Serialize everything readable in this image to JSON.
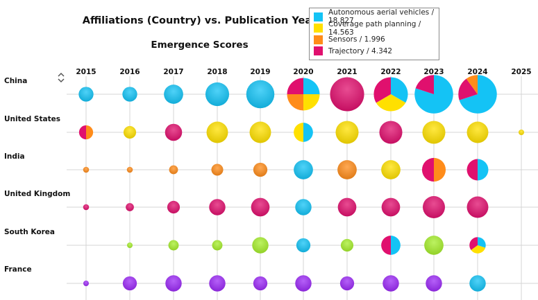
{
  "title": "Affiliations (Country) vs. Publication Year",
  "subtitle": "Emergence Scores",
  "icons": {
    "sort": "sort-toggle-icon"
  },
  "colors": {
    "Autonomous aerial vehicles": "#14C3F5",
    "Coverage path planning": "#FFE000",
    "Sensors": "#FF8C1A",
    "Trajectory": "#E0106E",
    "mixed": "#A6ED2C",
    "other": "#9C2BF5"
  },
  "legend": [
    {
      "label": "Autonomous aerial vehicles / 18.827",
      "series": "Autonomous aerial vehicles"
    },
    {
      "label": "Coverage path planning / 14.563",
      "series": "Coverage path planning"
    },
    {
      "label": "Sensors / 1.996",
      "series": "Sensors"
    },
    {
      "label": "Trajectory / 4.342",
      "series": "Trajectory"
    }
  ],
  "chart_data": {
    "type": "scatter",
    "subtype": "pie-bubble matrix",
    "title": "Affiliations (Country) vs. Publication Year",
    "subtitle": "Emergence Scores",
    "x_categories": [
      "2015",
      "2016",
      "2017",
      "2018",
      "2019",
      "2020",
      "2021",
      "2022",
      "2023",
      "2024",
      "2025"
    ],
    "y_categories": [
      "China",
      "United States",
      "India",
      "United Kingdom",
      "South Korea",
      "France"
    ],
    "grid": true,
    "legend_position": "top-right",
    "size_scale": [
      0,
      6
    ],
    "cells": [
      {
        "row": "China",
        "year": "2015",
        "size": 2.0,
        "slices": [
          {
            "s": "Autonomous aerial vehicles",
            "v": 1
          }
        ]
      },
      {
        "row": "China",
        "year": "2016",
        "size": 2.0,
        "slices": [
          {
            "s": "Autonomous aerial vehicles",
            "v": 1
          }
        ]
      },
      {
        "row": "China",
        "year": "2017",
        "size": 2.6,
        "slices": [
          {
            "s": "Autonomous aerial vehicles",
            "v": 1
          }
        ]
      },
      {
        "row": "China",
        "year": "2018",
        "size": 3.2,
        "slices": [
          {
            "s": "Autonomous aerial vehicles",
            "v": 1
          }
        ]
      },
      {
        "row": "China",
        "year": "2019",
        "size": 3.8,
        "slices": [
          {
            "s": "Autonomous aerial vehicles",
            "v": 1
          }
        ]
      },
      {
        "row": "China",
        "year": "2020",
        "size": 4.4,
        "slices": [
          {
            "s": "Autonomous aerial vehicles",
            "v": 0.25
          },
          {
            "s": "Coverage path planning",
            "v": 0.25
          },
          {
            "s": "Sensors",
            "v": 0.25
          },
          {
            "s": "Trajectory",
            "v": 0.25
          }
        ]
      },
      {
        "row": "China",
        "year": "2021",
        "size": 4.6,
        "slices": [
          {
            "s": "Trajectory",
            "v": 1
          }
        ]
      },
      {
        "row": "China",
        "year": "2022",
        "size": 4.6,
        "slices": [
          {
            "s": "Autonomous aerial vehicles",
            "v": 0.333
          },
          {
            "s": "Coverage path planning",
            "v": 0.333
          },
          {
            "s": "Trajectory",
            "v": 0.334
          }
        ]
      },
      {
        "row": "China",
        "year": "2023",
        "size": 5.2,
        "slices": [
          {
            "s": "Autonomous aerial vehicles",
            "v": 0.8
          },
          {
            "s": "Trajectory",
            "v": 0.2
          }
        ]
      },
      {
        "row": "China",
        "year": "2024",
        "size": 5.2,
        "slices": [
          {
            "s": "Autonomous aerial vehicles",
            "v": 0.7
          },
          {
            "s": "Trajectory",
            "v": 0.2
          },
          {
            "s": "Sensors",
            "v": 0.1
          }
        ]
      },
      {
        "row": "United States",
        "year": "2015",
        "size": 1.9,
        "slices": [
          {
            "s": "Sensors",
            "v": 0.5
          },
          {
            "s": "Trajectory",
            "v": 0.5
          }
        ]
      },
      {
        "row": "United States",
        "year": "2016",
        "size": 1.7,
        "slices": [
          {
            "s": "Coverage path planning",
            "v": 1
          }
        ]
      },
      {
        "row": "United States",
        "year": "2017",
        "size": 2.3,
        "slices": [
          {
            "s": "Trajectory",
            "v": 1
          }
        ]
      },
      {
        "row": "United States",
        "year": "2018",
        "size": 2.9,
        "slices": [
          {
            "s": "Coverage path planning",
            "v": 1
          }
        ]
      },
      {
        "row": "United States",
        "year": "2019",
        "size": 2.9,
        "slices": [
          {
            "s": "Coverage path planning",
            "v": 1
          }
        ]
      },
      {
        "row": "United States",
        "year": "2020",
        "size": 2.6,
        "slices": [
          {
            "s": "Autonomous aerial vehicles",
            "v": 0.5
          },
          {
            "s": "Coverage path planning",
            "v": 0.5
          }
        ]
      },
      {
        "row": "United States",
        "year": "2021",
        "size": 3.1,
        "slices": [
          {
            "s": "Coverage path planning",
            "v": 1
          }
        ]
      },
      {
        "row": "United States",
        "year": "2022",
        "size": 3.1,
        "slices": [
          {
            "s": "Trajectory",
            "v": 1
          }
        ]
      },
      {
        "row": "United States",
        "year": "2023",
        "size": 3.1,
        "slices": [
          {
            "s": "Coverage path planning",
            "v": 1
          }
        ]
      },
      {
        "row": "United States",
        "year": "2024",
        "size": 2.9,
        "slices": [
          {
            "s": "Coverage path planning",
            "v": 1
          }
        ]
      },
      {
        "row": "United States",
        "year": "2025",
        "size": 0.5,
        "slices": [
          {
            "s": "Coverage path planning",
            "v": 1
          }
        ]
      },
      {
        "row": "India",
        "year": "2015",
        "size": 0.8,
        "slices": [
          {
            "s": "Sensors",
            "v": 1
          }
        ]
      },
      {
        "row": "India",
        "year": "2016",
        "size": 0.8,
        "slices": [
          {
            "s": "Sensors",
            "v": 1
          }
        ]
      },
      {
        "row": "India",
        "year": "2017",
        "size": 1.2,
        "slices": [
          {
            "s": "Sensors",
            "v": 1
          }
        ]
      },
      {
        "row": "India",
        "year": "2018",
        "size": 1.6,
        "slices": [
          {
            "s": "Sensors",
            "v": 1
          }
        ]
      },
      {
        "row": "India",
        "year": "2019",
        "size": 1.9,
        "slices": [
          {
            "s": "Sensors",
            "v": 1
          }
        ]
      },
      {
        "row": "India",
        "year": "2020",
        "size": 2.6,
        "slices": [
          {
            "s": "Autonomous aerial vehicles",
            "v": 1
          }
        ]
      },
      {
        "row": "India",
        "year": "2021",
        "size": 2.6,
        "slices": [
          {
            "s": "Sensors",
            "v": 1
          }
        ]
      },
      {
        "row": "India",
        "year": "2022",
        "size": 2.6,
        "slices": [
          {
            "s": "Coverage path planning",
            "v": 1
          }
        ]
      },
      {
        "row": "India",
        "year": "2023",
        "size": 3.2,
        "slices": [
          {
            "s": "Sensors",
            "v": 0.5
          },
          {
            "s": "Trajectory",
            "v": 0.5
          }
        ]
      },
      {
        "row": "India",
        "year": "2024",
        "size": 2.9,
        "slices": [
          {
            "s": "Autonomous aerial vehicles",
            "v": 0.5
          },
          {
            "s": "Trajectory",
            "v": 0.5
          }
        ]
      },
      {
        "row": "United Kingdom",
        "year": "2015",
        "size": 0.8,
        "slices": [
          {
            "s": "Trajectory",
            "v": 1
          }
        ]
      },
      {
        "row": "United Kingdom",
        "year": "2016",
        "size": 1.1,
        "slices": [
          {
            "s": "Trajectory",
            "v": 1
          }
        ]
      },
      {
        "row": "United Kingdom",
        "year": "2017",
        "size": 1.7,
        "slices": [
          {
            "s": "Trajectory",
            "v": 1
          }
        ]
      },
      {
        "row": "United Kingdom",
        "year": "2018",
        "size": 2.2,
        "slices": [
          {
            "s": "Trajectory",
            "v": 1
          }
        ]
      },
      {
        "row": "United Kingdom",
        "year": "2019",
        "size": 2.5,
        "slices": [
          {
            "s": "Trajectory",
            "v": 1
          }
        ]
      },
      {
        "row": "United Kingdom",
        "year": "2020",
        "size": 2.2,
        "slices": [
          {
            "s": "Autonomous aerial vehicles",
            "v": 1
          }
        ]
      },
      {
        "row": "United Kingdom",
        "year": "2021",
        "size": 2.5,
        "slices": [
          {
            "s": "Trajectory",
            "v": 1
          }
        ]
      },
      {
        "row": "United Kingdom",
        "year": "2022",
        "size": 2.5,
        "slices": [
          {
            "s": "Trajectory",
            "v": 1
          }
        ]
      },
      {
        "row": "United Kingdom",
        "year": "2023",
        "size": 3.0,
        "slices": [
          {
            "s": "Trajectory",
            "v": 1
          }
        ]
      },
      {
        "row": "United Kingdom",
        "year": "2024",
        "size": 2.9,
        "slices": [
          {
            "s": "Trajectory",
            "v": 1
          }
        ]
      },
      {
        "row": "South Korea",
        "year": "2016",
        "size": 0.7,
        "slices": [
          {
            "s": "mixed",
            "v": 1
          }
        ]
      },
      {
        "row": "South Korea",
        "year": "2017",
        "size": 1.4,
        "slices": [
          {
            "s": "mixed",
            "v": 1
          }
        ]
      },
      {
        "row": "South Korea",
        "year": "2018",
        "size": 1.4,
        "slices": [
          {
            "s": "mixed",
            "v": 1
          }
        ]
      },
      {
        "row": "South Korea",
        "year": "2019",
        "size": 2.2,
        "slices": [
          {
            "s": "mixed",
            "v": 1
          }
        ]
      },
      {
        "row": "South Korea",
        "year": "2020",
        "size": 1.9,
        "slices": [
          {
            "s": "Autonomous aerial vehicles",
            "v": 1
          }
        ]
      },
      {
        "row": "South Korea",
        "year": "2021",
        "size": 1.7,
        "slices": [
          {
            "s": "mixed",
            "v": 1
          }
        ]
      },
      {
        "row": "South Korea",
        "year": "2022",
        "size": 2.6,
        "slices": [
          {
            "s": "Autonomous aerial vehicles",
            "v": 0.5
          },
          {
            "s": "Trajectory",
            "v": 0.5
          }
        ]
      },
      {
        "row": "South Korea",
        "year": "2023",
        "size": 2.6,
        "slices": [
          {
            "s": "mixed",
            "v": 1
          }
        ]
      },
      {
        "row": "South Korea",
        "year": "2024",
        "size": 2.2,
        "slices": [
          {
            "s": "Autonomous aerial vehicles",
            "v": 0.3
          },
          {
            "s": "Coverage path planning",
            "v": 0.35
          },
          {
            "s": "Trajectory",
            "v": 0.35
          }
        ]
      },
      {
        "row": "France",
        "year": "2015",
        "size": 0.4,
        "slices": [
          {
            "s": "other",
            "v": 1
          }
        ]
      },
      {
        "row": "France",
        "year": "2016",
        "size": 1.9,
        "slices": [
          {
            "s": "other",
            "v": 1
          }
        ]
      },
      {
        "row": "France",
        "year": "2017",
        "size": 2.2,
        "slices": [
          {
            "s": "other",
            "v": 1
          }
        ]
      },
      {
        "row": "France",
        "year": "2018",
        "size": 2.2,
        "slices": [
          {
            "s": "other",
            "v": 1
          }
        ]
      },
      {
        "row": "France",
        "year": "2019",
        "size": 1.9,
        "slices": [
          {
            "s": "other",
            "v": 1
          }
        ]
      },
      {
        "row": "France",
        "year": "2020",
        "size": 2.2,
        "slices": [
          {
            "s": "other",
            "v": 1
          }
        ]
      },
      {
        "row": "France",
        "year": "2021",
        "size": 1.9,
        "slices": [
          {
            "s": "other",
            "v": 1
          }
        ]
      },
      {
        "row": "France",
        "year": "2022",
        "size": 2.2,
        "slices": [
          {
            "s": "other",
            "v": 1
          }
        ]
      },
      {
        "row": "France",
        "year": "2023",
        "size": 2.2,
        "slices": [
          {
            "s": "other",
            "v": 1
          }
        ]
      },
      {
        "row": "France",
        "year": "2024",
        "size": 2.2,
        "slices": [
          {
            "s": "Autonomous aerial vehicles",
            "v": 1
          }
        ]
      }
    ]
  }
}
